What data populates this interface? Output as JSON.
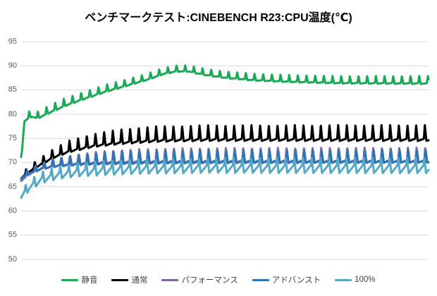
{
  "colors": {
    "background": "#ffffff",
    "grid": "#d9d9d9",
    "axis_text": "#595959",
    "title_text": "#000000",
    "legend_text": "#404040"
  },
  "chart_data": {
    "type": "line",
    "title": "ベンチマークテスト:CINEBENCH R23:CPU温度(℃)",
    "ylabel": "CPU温度(℃)",
    "ylim": [
      50,
      95
    ],
    "yticks": [
      95,
      90,
      85,
      80,
      75,
      70,
      65,
      60,
      55,
      50
    ],
    "x_tick_labels_visible": false,
    "grid": true,
    "legend_position": "bottom",
    "spike_cycles": 47,
    "series": [
      {
        "id": "quiet",
        "name": "静音",
        "color": "#1aa956",
        "baseline": [
          [
            0,
            70.5
          ],
          [
            0.8,
            78.6
          ],
          [
            2.5,
            79.6
          ],
          [
            4,
            79.2
          ],
          [
            7,
            80.4
          ],
          [
            11,
            81.9
          ],
          [
            16,
            83.4
          ],
          [
            21,
            84.8
          ],
          [
            26,
            86.0
          ],
          [
            31,
            87.2
          ],
          [
            35,
            88.4
          ],
          [
            38,
            88.9
          ],
          [
            41,
            88.9
          ],
          [
            45,
            88.2
          ],
          [
            50,
            87.6
          ],
          [
            57,
            87.1
          ],
          [
            65,
            86.8
          ],
          [
            78,
            86.5
          ],
          [
            100,
            86.4
          ]
        ],
        "spike_amp": [
          [
            0,
            1.3
          ],
          [
            10,
            1.5
          ],
          [
            30,
            1.2
          ],
          [
            40,
            1.2
          ],
          [
            100,
            1.5
          ]
        ],
        "undershoot": 0.12,
        "phase": 0.2
      },
      {
        "id": "normal",
        "name": "通常",
        "color": "#000000",
        "baseline": [
          [
            0,
            66.8
          ],
          [
            1.5,
            67.9
          ],
          [
            4,
            69.3
          ],
          [
            8,
            71.2
          ],
          [
            12,
            72.5
          ],
          [
            18,
            73.6
          ],
          [
            24,
            74.2
          ],
          [
            33,
            74.7
          ],
          [
            45,
            74.9
          ],
          [
            100,
            74.9
          ]
        ],
        "spike_amp": [
          [
            0,
            0.8
          ],
          [
            5,
            1.4
          ],
          [
            12,
            2.1
          ],
          [
            20,
            2.5
          ],
          [
            30,
            2.8
          ],
          [
            100,
            2.9
          ]
        ],
        "undershoot": 0.15,
        "phase": 0.55
      },
      {
        "id": "performance",
        "name": "パフォーマンス",
        "color": "#8064a2",
        "baseline": [
          [
            0,
            66.3
          ],
          [
            2,
            67.7
          ],
          [
            5,
            68.8
          ],
          [
            9,
            69.5
          ],
          [
            14,
            69.9
          ],
          [
            20,
            70.2
          ],
          [
            30,
            70.4
          ],
          [
            50,
            70.5
          ],
          [
            100,
            70.5
          ]
        ],
        "spike_amp": [
          [
            0,
            0.7
          ],
          [
            10,
            1.5
          ],
          [
            20,
            2.2
          ],
          [
            35,
            2.5
          ],
          [
            100,
            2.6
          ]
        ],
        "undershoot": 0.2,
        "phase": 0.5
      },
      {
        "id": "advanced",
        "name": "アドバンスト",
        "color": "#2e75b6",
        "baseline": [
          [
            0,
            66.8
          ],
          [
            2,
            67.9
          ],
          [
            5,
            68.9
          ],
          [
            9,
            69.5
          ],
          [
            14,
            69.9
          ],
          [
            20,
            70.1
          ],
          [
            30,
            70.3
          ],
          [
            50,
            70.4
          ],
          [
            100,
            70.5
          ]
        ],
        "spike_amp": [
          [
            0,
            0.7
          ],
          [
            8,
            1.3
          ],
          [
            15,
            1.8
          ],
          [
            25,
            2.1
          ],
          [
            100,
            2.1
          ]
        ],
        "undershoot": 0.25,
        "phase": 0.45
      },
      {
        "id": "full-speed",
        "name": "100%",
        "color": "#55a8c6",
        "baseline": [
          [
            0,
            63.3
          ],
          [
            2,
            65.3
          ],
          [
            5,
            66.9
          ],
          [
            9,
            67.9
          ],
          [
            14,
            68.5
          ],
          [
            20,
            68.9
          ],
          [
            30,
            69.2
          ],
          [
            45,
            69.4
          ],
          [
            100,
            69.4
          ]
        ],
        "spike_amp": [
          [
            0,
            1.0
          ],
          [
            10,
            1.3
          ],
          [
            20,
            1.5
          ],
          [
            100,
            1.6
          ]
        ],
        "undershoot": 1.0,
        "phase": 0.6
      }
    ]
  }
}
